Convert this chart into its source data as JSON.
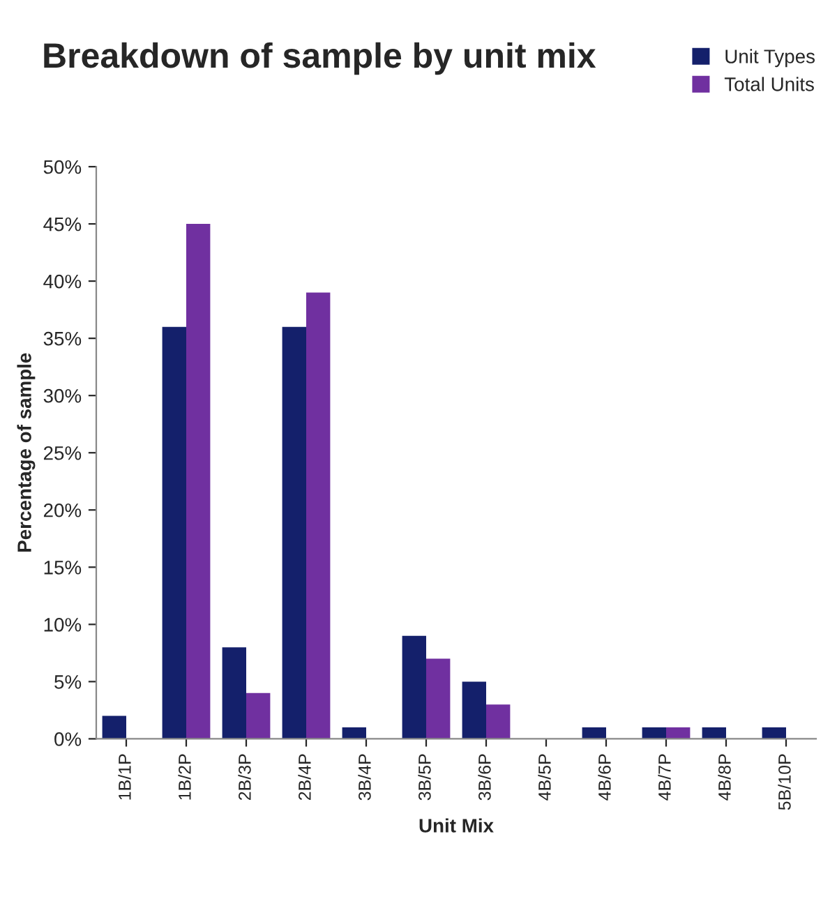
{
  "chart_data": {
    "type": "bar",
    "title": "Breakdown of sample by unit mix",
    "xlabel": "Unit Mix",
    "ylabel": "Percentage of sample",
    "categories": [
      "1B/1P",
      "1B/2P",
      "2B/3P",
      "2B/4P",
      "3B/4P",
      "3B/5P",
      "3B/6P",
      "4B/5P",
      "4B/6P",
      "4B/7P",
      "4B/8P",
      "5B/10P"
    ],
    "series": [
      {
        "name": "Unit Types",
        "color": "#14206b",
        "values": [
          2,
          36,
          8,
          36,
          1,
          9,
          5,
          null,
          1,
          1,
          1,
          1
        ]
      },
      {
        "name": "Total Units",
        "color": "#7030a0",
        "values": [
          null,
          45,
          4,
          39,
          null,
          7,
          3,
          null,
          null,
          1,
          null,
          null
        ]
      }
    ],
    "ylim": [
      0,
      50
    ],
    "yticks": [
      {
        "value": 0,
        "label": "0%"
      },
      {
        "value": 5,
        "label": "5%"
      },
      {
        "value": 10,
        "label": "10%"
      },
      {
        "value": 15,
        "label": "15%"
      },
      {
        "value": 20,
        "label": "20%"
      },
      {
        "value": 25,
        "label": "25%"
      },
      {
        "value": 30,
        "label": "30%"
      },
      {
        "value": 35,
        "label": "35%"
      },
      {
        "value": 40,
        "label": "40%"
      },
      {
        "value": 45,
        "label": "45%"
      },
      {
        "value": 50,
        "label": "50%"
      }
    ],
    "grid": false,
    "legend": "top right"
  }
}
